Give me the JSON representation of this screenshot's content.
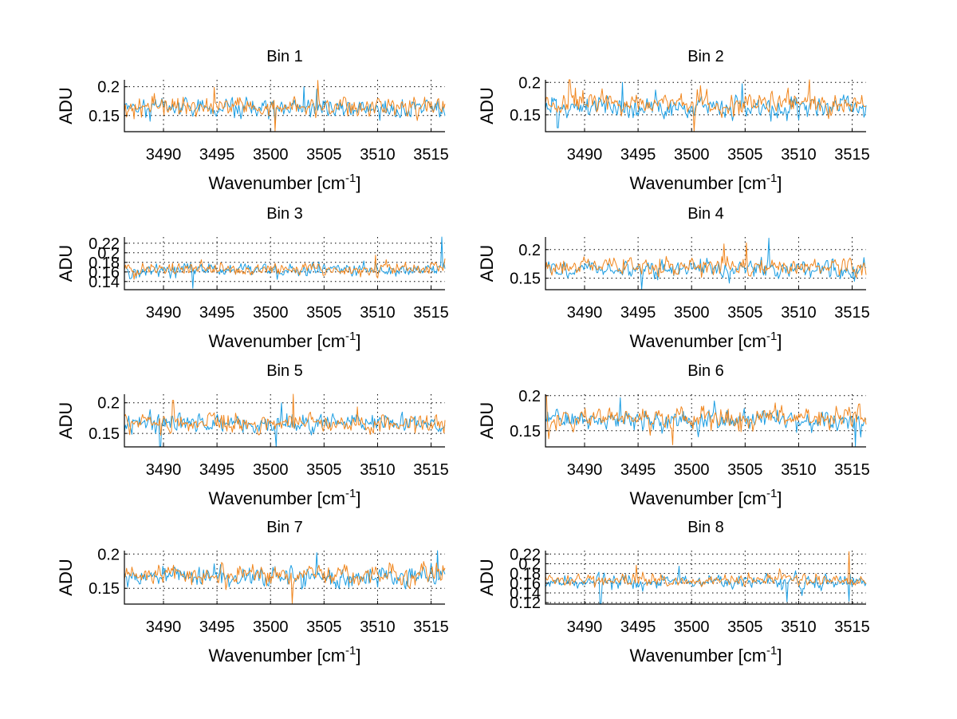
{
  "figure": {
    "background": "#ffffff",
    "layout": "4 rows x 2 columns"
  },
  "chart_data": [
    {
      "type": "line",
      "title": "Bin 1",
      "xlabel": "Wavenumber [cm^-1]",
      "ylabel": "ADU",
      "xlim": [
        3486.35,
        3516.3
      ],
      "ylim": [
        0.122,
        0.212
      ],
      "xticks": [
        3490,
        3495,
        3500,
        3505,
        3510,
        3515
      ],
      "xtick_labels": [
        "3490",
        "3495",
        "3500",
        "3505",
        "3510",
        "3515"
      ],
      "yticks": [
        0.15,
        0.2
      ],
      "ytick_labels": [
        "0.15",
        "0.2"
      ],
      "grid": true,
      "series": [
        {
          "name": "series-blue",
          "color": "#1b9de2",
          "mean": 0.163,
          "std": 0.012,
          "seed": 11,
          "spikes": [
            [
              3503.1,
              0.2
            ],
            [
              3504.3,
              0.196
            ]
          ]
        },
        {
          "name": "series-orange",
          "color": "#f0861e",
          "mean": 0.166,
          "std": 0.012,
          "seed": 12,
          "spikes": [
            [
              3504.4,
              0.211
            ],
            [
              3500.4,
              0.123
            ],
            [
              3494.7,
              0.199
            ]
          ]
        }
      ]
    },
    {
      "type": "line",
      "title": "Bin 2",
      "xlabel": "Wavenumber [cm^-1]",
      "ylabel": "ADU",
      "xlim": [
        3486.35,
        3516.3
      ],
      "ylim": [
        0.124,
        0.204
      ],
      "xticks": [
        3490,
        3495,
        3500,
        3505,
        3510,
        3515
      ],
      "xtick_labels": [
        "3490",
        "3495",
        "3500",
        "3505",
        "3510",
        "3515"
      ],
      "yticks": [
        0.15,
        0.2
      ],
      "ytick_labels": [
        "0.15",
        "0.2"
      ],
      "grid": true,
      "series": [
        {
          "name": "series-blue",
          "color": "#1b9de2",
          "mean": 0.163,
          "std": 0.012,
          "seed": 21,
          "spikes": [
            [
              3493.5,
              0.2
            ],
            [
              3504.7,
              0.198
            ],
            [
              3487.5,
              0.13
            ]
          ]
        },
        {
          "name": "series-orange",
          "color": "#f0861e",
          "mean": 0.168,
          "std": 0.012,
          "seed": 22,
          "spikes": [
            [
              3488.6,
              0.204
            ],
            [
              3511.0,
              0.204
            ],
            [
              3500.2,
              0.124
            ]
          ]
        }
      ]
    },
    {
      "type": "line",
      "title": "Bin 3",
      "xlabel": "Wavenumber [cm^-1]",
      "ylabel": "ADU",
      "xlim": [
        3486.35,
        3516.3
      ],
      "ylim": [
        0.123,
        0.233
      ],
      "xticks": [
        3490,
        3495,
        3500,
        3505,
        3510,
        3515
      ],
      "xtick_labels": [
        "3490",
        "3495",
        "3500",
        "3505",
        "3510",
        "3515"
      ],
      "yticks": [
        0.14,
        0.16,
        0.18,
        0.2,
        0.22
      ],
      "ytick_labels": [
        "0.14",
        "0.16",
        "0.18",
        "0.2",
        "0.22"
      ],
      "grid": true,
      "series": [
        {
          "name": "series-blue",
          "color": "#1b9de2",
          "mean": 0.165,
          "std": 0.01,
          "seed": 31,
          "spikes": [
            [
              3516.0,
              0.235
            ],
            [
              3492.7,
              0.126
            ]
          ]
        },
        {
          "name": "series-orange",
          "color": "#f0861e",
          "mean": 0.166,
          "std": 0.01,
          "seed": 32,
          "spikes": [
            [
              3509.8,
              0.195
            ]
          ]
        }
      ]
    },
    {
      "type": "line",
      "title": "Bin 4",
      "xlabel": "Wavenumber [cm^-1]",
      "ylabel": "ADU",
      "xlim": [
        3486.35,
        3516.3
      ],
      "ylim": [
        0.13,
        0.222
      ],
      "xticks": [
        3490,
        3495,
        3500,
        3505,
        3510,
        3515
      ],
      "xtick_labels": [
        "3490",
        "3495",
        "3500",
        "3505",
        "3510",
        "3515"
      ],
      "yticks": [
        0.15,
        0.2
      ],
      "ytick_labels": [
        "0.15",
        "0.2"
      ],
      "grid": true,
      "series": [
        {
          "name": "series-blue",
          "color": "#1b9de2",
          "mean": 0.165,
          "std": 0.011,
          "seed": 41,
          "spikes": [
            [
              3507.2,
              0.22
            ],
            [
              3495.3,
              0.131
            ]
          ]
        },
        {
          "name": "series-orange",
          "color": "#f0861e",
          "mean": 0.17,
          "std": 0.011,
          "seed": 42,
          "spikes": [
            [
              3503.0,
              0.21
            ],
            [
              3505.1,
              0.212
            ]
          ]
        }
      ]
    },
    {
      "type": "line",
      "title": "Bin 5",
      "xlabel": "Wavenumber [cm^-1]",
      "ylabel": "ADU",
      "xlim": [
        3486.35,
        3516.3
      ],
      "ylim": [
        0.128,
        0.214
      ],
      "xticks": [
        3490,
        3495,
        3500,
        3505,
        3510,
        3515
      ],
      "xtick_labels": [
        "3490",
        "3495",
        "3500",
        "3505",
        "3510",
        "3515"
      ],
      "yticks": [
        0.15,
        0.2
      ],
      "ytick_labels": [
        "0.15",
        "0.2"
      ],
      "grid": true,
      "series": [
        {
          "name": "series-blue",
          "color": "#1b9de2",
          "mean": 0.167,
          "std": 0.011,
          "seed": 51,
          "spikes": [
            [
              3500.5,
              0.128
            ],
            [
              3489.7,
              0.129
            ],
            [
              3501.0,
              0.2
            ]
          ]
        },
        {
          "name": "series-orange",
          "color": "#f0861e",
          "mean": 0.166,
          "std": 0.011,
          "seed": 52,
          "spikes": [
            [
              3502.1,
              0.214
            ],
            [
              3490.9,
              0.204
            ]
          ]
        }
      ]
    },
    {
      "type": "line",
      "title": "Bin 6",
      "xlabel": "Wavenumber [cm^-1]",
      "ylabel": "ADU",
      "xlim": [
        3486.35,
        3516.3
      ],
      "ylim": [
        0.127,
        0.202
      ],
      "xticks": [
        3490,
        3495,
        3500,
        3505,
        3510,
        3515
      ],
      "xtick_labels": [
        "3490",
        "3495",
        "3500",
        "3505",
        "3510",
        "3515"
      ],
      "yticks": [
        0.15,
        0.2
      ],
      "ytick_labels": [
        "0.15",
        "0.2"
      ],
      "grid": true,
      "series": [
        {
          "name": "series-blue",
          "color": "#1b9de2",
          "mean": 0.165,
          "std": 0.011,
          "seed": 61,
          "spikes": [
            [
              3515.3,
              0.128
            ],
            [
              3493.3,
              0.197
            ]
          ]
        },
        {
          "name": "series-orange",
          "color": "#f0861e",
          "mean": 0.168,
          "std": 0.011,
          "seed": 62,
          "spikes": [
            [
              3486.4,
              0.2
            ],
            [
              3498.2,
              0.13
            ]
          ]
        }
      ]
    },
    {
      "type": "line",
      "title": "Bin 7",
      "xlabel": "Wavenumber [cm^-1]",
      "ylabel": "ADU",
      "xlim": [
        3486.35,
        3516.3
      ],
      "ylim": [
        0.127,
        0.205
      ],
      "xticks": [
        3490,
        3495,
        3500,
        3505,
        3510,
        3515
      ],
      "xtick_labels": [
        "3490",
        "3495",
        "3500",
        "3505",
        "3510",
        "3515"
      ],
      "yticks": [
        0.15,
        0.2
      ],
      "ytick_labels": [
        "0.15",
        "0.2"
      ],
      "grid": true,
      "series": [
        {
          "name": "series-blue",
          "color": "#1b9de2",
          "mean": 0.168,
          "std": 0.011,
          "seed": 71,
          "spikes": [
            [
              3515.6,
              0.205
            ],
            [
              3504.3,
              0.202
            ]
          ]
        },
        {
          "name": "series-orange",
          "color": "#f0861e",
          "mean": 0.17,
          "std": 0.011,
          "seed": 72,
          "spikes": [
            [
              3502.0,
              0.128
            ]
          ]
        }
      ]
    },
    {
      "type": "line",
      "title": "Bin 8",
      "xlabel": "Wavenumber [cm^-1]",
      "ylabel": "ADU",
      "xlim": [
        3486.35,
        3516.3
      ],
      "ylim": [
        0.117,
        0.227
      ],
      "xticks": [
        3490,
        3495,
        3500,
        3505,
        3510,
        3515
      ],
      "xtick_labels": [
        "3490",
        "3495",
        "3500",
        "3505",
        "3510",
        "3515"
      ],
      "yticks": [
        0.12,
        0.14,
        0.16,
        0.18,
        0.2,
        0.22
      ],
      "ytick_labels": [
        "0.12",
        "0.14",
        "0.16",
        "0.18",
        "0.2",
        "0.22"
      ],
      "grid": true,
      "series": [
        {
          "name": "series-blue",
          "color": "#1b9de2",
          "mean": 0.163,
          "std": 0.01,
          "seed": 81,
          "spikes": [
            [
              3491.5,
              0.118
            ],
            [
              3508.9,
              0.122
            ],
            [
              3514.7,
              0.123
            ],
            [
              3498.8,
              0.195
            ]
          ]
        },
        {
          "name": "series-orange",
          "color": "#f0861e",
          "mean": 0.166,
          "std": 0.009,
          "seed": 82,
          "spikes": [
            [
              3514.7,
              0.225
            ],
            [
              3494.8,
              0.197
            ]
          ]
        }
      ]
    }
  ]
}
